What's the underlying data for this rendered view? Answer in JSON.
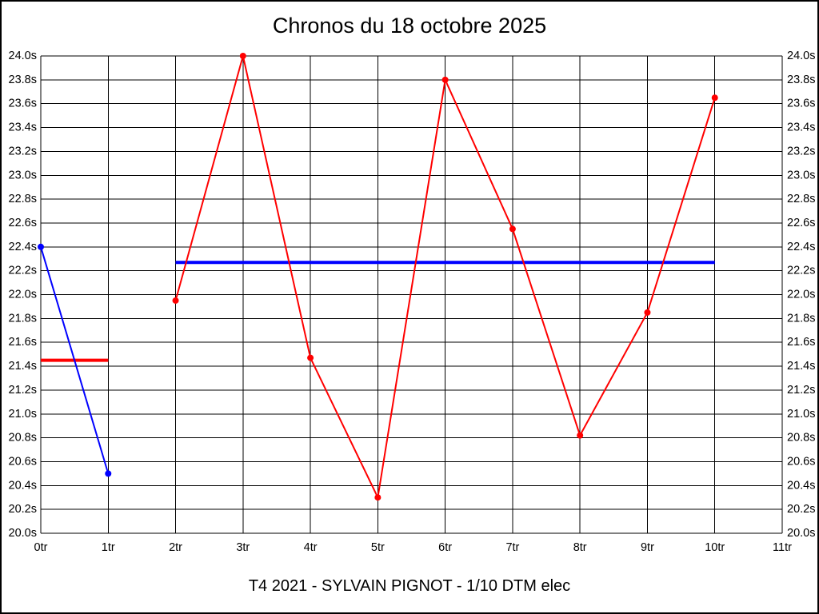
{
  "title": "Chronos du 18 octobre 2025",
  "footer": "T4 2021 - SYLVAIN PIGNOT - 1/10 DTM elec",
  "colors": {
    "background": "#ffffff",
    "outer_border": "#000000",
    "grid": "#000000",
    "series_blue": "#0000ff",
    "series_red": "#ff0000"
  },
  "chart_data": {
    "type": "line",
    "title": "Chronos du 18 octobre 2025",
    "subtitle": "T4 2021 - SYLVAIN PIGNOT - 1/10 DTM elec",
    "xlabel": "",
    "ylabel": "",
    "x_unit": "tr",
    "y_unit": "s",
    "xlim": [
      0,
      11
    ],
    "ylim": [
      20.0,
      24.0
    ],
    "y_step": 0.2,
    "grid": true,
    "legend": "none",
    "x_tick_labels": [
      "0tr",
      "1tr",
      "2tr",
      "3tr",
      "4tr",
      "5tr",
      "6tr",
      "7tr",
      "8tr",
      "9tr",
      "10tr",
      "11tr"
    ],
    "y_tick_labels_top_to_bottom": [
      "24.0s",
      "23.8s",
      "23.6s",
      "23.4s",
      "23.2s",
      "23.0s",
      "22.8s",
      "22.6s",
      "22.4s",
      "22.2s",
      "22.0s",
      "21.8s",
      "21.6s",
      "21.4s",
      "21.2s",
      "21.0s",
      "20.8s",
      "20.6s",
      "20.4s",
      "20.2s",
      "20.0s"
    ],
    "series": [
      {
        "name": "run-1-blue",
        "color": "#0000ff",
        "marker": "dot",
        "points": [
          [
            0,
            22.4
          ],
          [
            1,
            20.5
          ]
        ]
      },
      {
        "name": "run-2-red",
        "color": "#ff0000",
        "marker": "dot",
        "points": [
          [
            2,
            21.95
          ],
          [
            3,
            24.0
          ],
          [
            4,
            21.47
          ],
          [
            5,
            20.3
          ],
          [
            6,
            23.8
          ],
          [
            7,
            22.55
          ],
          [
            8,
            20.82
          ],
          [
            9,
            21.85
          ],
          [
            10,
            23.65
          ]
        ]
      }
    ],
    "mean_lines": [
      {
        "name": "mean-of-blue-run",
        "color": "#ff0000",
        "value": 21.45,
        "x_from": 0,
        "x_to": 1
      },
      {
        "name": "mean-of-red-run",
        "color": "#0000ff",
        "value": 22.27,
        "x_from": 2,
        "x_to": 10
      }
    ]
  }
}
